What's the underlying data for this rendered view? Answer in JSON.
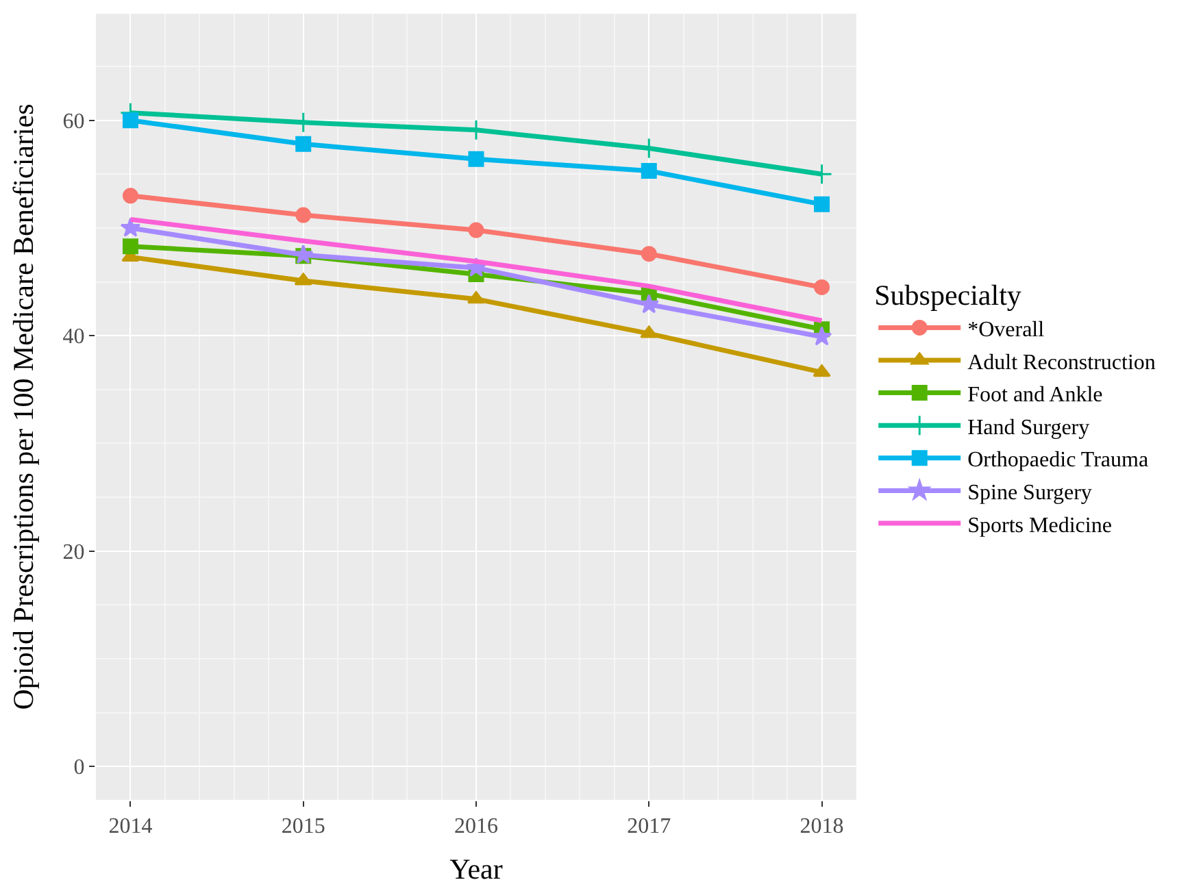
{
  "chart_data": {
    "type": "line",
    "xlabel": "Year",
    "ylabel": "Opioid Prescriptions per 100 Medicare Beneficiaries",
    "legend_title": "Subspecialty",
    "x": [
      2014,
      2015,
      2016,
      2017,
      2018
    ],
    "series": [
      {
        "name": "*Overall",
        "color": "#f8766d",
        "marker": "circle",
        "values": [
          53.0,
          51.2,
          49.8,
          47.6,
          44.5
        ]
      },
      {
        "name": "Adult Reconstruction",
        "color": "#c49a00",
        "marker": "triangle",
        "values": [
          47.3,
          45.1,
          43.4,
          40.2,
          36.6
        ]
      },
      {
        "name": "Foot and Ankle",
        "color": "#53b400",
        "marker": "square",
        "values": [
          48.3,
          47.4,
          45.7,
          43.9,
          40.6
        ]
      },
      {
        "name": "Hand Surgery",
        "color": "#00c094",
        "marker": "cross",
        "values": [
          60.7,
          59.8,
          59.1,
          57.4,
          55.0
        ]
      },
      {
        "name": "Orthopaedic Trauma",
        "color": "#00b6eb",
        "marker": "square",
        "values": [
          60.0,
          57.8,
          56.4,
          55.3,
          52.2
        ]
      },
      {
        "name": "Spine Surgery",
        "color": "#a58aff",
        "marker": "star",
        "values": [
          50.0,
          47.5,
          46.3,
          42.9,
          39.9
        ]
      },
      {
        "name": "Sports Medicine",
        "color": "#fb61d7",
        "marker": "none",
        "values": [
          50.8,
          48.8,
          46.9,
          44.6,
          41.4
        ]
      }
    ],
    "xlim": [
      2013.8,
      2018.2
    ],
    "xticks": [
      2014,
      2015,
      2016,
      2017,
      2018
    ],
    "ylim": [
      -3.1,
      69.9
    ],
    "yticks": [
      0,
      20,
      40,
      60
    ],
    "grid": true,
    "legend": "right",
    "line_style": "solid"
  }
}
